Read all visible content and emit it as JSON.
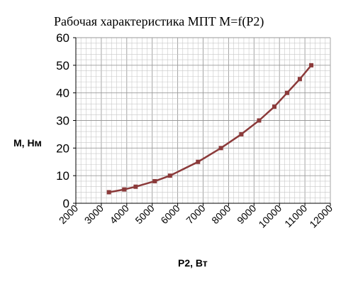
{
  "chart_data": {
    "type": "line",
    "title": "Рабочая характеристика  МПТ    M=f(P2)",
    "xlabel": "P2, Вт",
    "ylabel": "M, Нм",
    "xlim": [
      2000,
      12000
    ],
    "ylim": [
      0,
      60
    ],
    "xticks": [
      2000,
      3000,
      4000,
      5000,
      6000,
      7000,
      8000,
      9000,
      10000,
      11000,
      12000
    ],
    "yticks": [
      0,
      10,
      20,
      30,
      40,
      50,
      60
    ],
    "grid": true,
    "legend": "none",
    "series": [
      {
        "color": "#8B3A3A",
        "x": [
          3300,
          3900,
          4350,
          5100,
          5700,
          6800,
          7700,
          8500,
          9200,
          9800,
          10300,
          10800,
          11250
        ],
        "y": [
          4,
          5,
          6,
          8,
          10,
          15,
          20,
          25,
          30,
          35,
          40,
          45,
          50
        ]
      }
    ]
  }
}
